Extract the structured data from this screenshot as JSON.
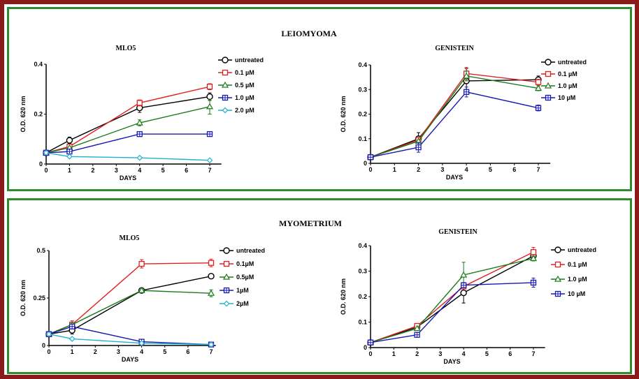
{
  "colors": {
    "outer_border": "#8b1a1a",
    "panel_border": "#2e8b2e",
    "series": {
      "untreated": "#000000",
      "red": "#e02020",
      "green": "#1a7a1a",
      "blue": "#1a1ab0",
      "cyan": "#20b0d0"
    }
  },
  "panels": [
    {
      "title": "LEIOMYOMA"
    },
    {
      "title": "MYOMETRIUM"
    }
  ],
  "chart_data": [
    {
      "type": "line",
      "panel": "LEIOMYOMA",
      "title": "MLO5",
      "xlabel": "DAYS",
      "ylabel": "O.D. 620 nm",
      "xlim": [
        0,
        7.5
      ],
      "ylim": [
        0,
        0.4
      ],
      "xticks": [
        0,
        1,
        2,
        3,
        4,
        5,
        6,
        7
      ],
      "yticks": [
        0,
        0.2,
        0.4
      ],
      "ytick_labels": [
        "0",
        "0.2",
        "0.4"
      ],
      "x": [
        0,
        1,
        4,
        7
      ],
      "series": [
        {
          "name": "untreated",
          "color": "#000000",
          "marker": "circle",
          "values": [
            0.045,
            0.095,
            0.225,
            0.27
          ],
          "errors": [
            0,
            0.013,
            0.018,
            0.015
          ]
        },
        {
          "name": "0.1 µM",
          "color": "#e02020",
          "marker": "square",
          "values": [
            0.045,
            0.07,
            0.245,
            0.31
          ],
          "errors": [
            0,
            0,
            0.012,
            0.012
          ]
        },
        {
          "name": "0.5 µM",
          "color": "#1a7a1a",
          "marker": "triangle",
          "values": [
            0.045,
            0.065,
            0.165,
            0.23
          ],
          "errors": [
            0,
            0,
            0.012,
            0.03
          ]
        },
        {
          "name": "1.0 µM",
          "color": "#1a1ab0",
          "marker": "squarecross",
          "values": [
            0.045,
            0.05,
            0.12,
            0.12
          ],
          "errors": [
            0,
            0,
            0.01,
            0.008
          ]
        },
        {
          "name": "2.0 µM",
          "color": "#20b0d0",
          "marker": "diamond",
          "values": [
            0.045,
            0.03,
            0.025,
            0.015
          ],
          "errors": [
            0,
            0,
            0,
            0
          ]
        }
      ]
    },
    {
      "type": "line",
      "panel": "LEIOMYOMA",
      "title": "GENISTEIN",
      "xlabel": "DAYS",
      "ylabel": "O.D. 620 nm",
      "xlim": [
        0,
        7.5
      ],
      "ylim": [
        0,
        0.4
      ],
      "xticks": [
        0,
        1,
        2,
        3,
        4,
        5,
        6,
        7
      ],
      "yticks": [
        0,
        0.1,
        0.2,
        0.3,
        0.4
      ],
      "ytick_labels": [
        "0",
        "0.1",
        "0.2",
        "0.3",
        "0.4"
      ],
      "x": [
        0,
        2,
        4,
        7
      ],
      "series": [
        {
          "name": "untreated",
          "color": "#000000",
          "marker": "circle",
          "values": [
            0.025,
            0.1,
            0.335,
            0.34
          ],
          "errors": [
            0,
            0.025,
            0.05,
            0.015
          ]
        },
        {
          "name": "0.1 µM",
          "color": "#e02020",
          "marker": "square",
          "values": [
            0.025,
            0.095,
            0.365,
            0.33
          ],
          "errors": [
            0,
            0,
            0.025,
            0.012
          ]
        },
        {
          "name": "1.0 µM",
          "color": "#1a7a1a",
          "marker": "triangle",
          "values": [
            0.025,
            0.09,
            0.355,
            0.305
          ],
          "errors": [
            0,
            0,
            0.02,
            0.01
          ]
        },
        {
          "name": "10 µM",
          "color": "#1a1ab0",
          "marker": "squarecross",
          "values": [
            0.025,
            0.065,
            0.29,
            0.225
          ],
          "errors": [
            0,
            0.02,
            0.02,
            0.012
          ]
        }
      ]
    },
    {
      "type": "line",
      "panel": "MYOMETRIUM",
      "title": "MLO5",
      "xlabel": "DAYS",
      "ylabel": "O.D. 620 nm",
      "xlim": [
        0,
        7.2
      ],
      "ylim": [
        0,
        0.5
      ],
      "xticks": [
        0,
        1,
        2,
        3,
        4,
        5,
        6,
        7
      ],
      "yticks": [
        0,
        0.25,
        0.5
      ],
      "ytick_labels": [
        "0",
        "0.25",
        "0.5"
      ],
      "x": [
        0,
        1,
        4,
        7
      ],
      "series": [
        {
          "name": "untreated",
          "color": "#000000",
          "marker": "circle",
          "values": [
            0.06,
            0.08,
            0.29,
            0.365
          ],
          "errors": [
            0,
            0.02,
            0.012,
            0
          ]
        },
        {
          "name": "0.1µM",
          "color": "#e02020",
          "marker": "square",
          "values": [
            0.06,
            0.11,
            0.43,
            0.435
          ],
          "errors": [
            0,
            0.02,
            0.022,
            0.02
          ]
        },
        {
          "name": "0.5µM",
          "color": "#1a7a1a",
          "marker": "triangle",
          "values": [
            0.06,
            0.11,
            0.29,
            0.275
          ],
          "errors": [
            0,
            0,
            0.012,
            0.018
          ]
        },
        {
          "name": "1µM",
          "color": "#1a1ab0",
          "marker": "squarecross",
          "values": [
            0.06,
            0.1,
            0.02,
            0.005
          ],
          "errors": [
            0,
            0,
            0,
            0
          ]
        },
        {
          "name": "2µM",
          "color": "#20b0d0",
          "marker": "diamond",
          "values": [
            0.06,
            0.035,
            0.012,
            0.005
          ],
          "errors": [
            0,
            0,
            0,
            0
          ]
        }
      ]
    },
    {
      "type": "line",
      "panel": "MYOMETRIUM",
      "title": "GENISTEIN",
      "xlabel": "DAYS",
      "ylabel": "O.D. 620 nm",
      "xlim": [
        0,
        7.5
      ],
      "ylim": [
        0,
        0.4
      ],
      "xticks": [
        0,
        1,
        2,
        3,
        4,
        5,
        6,
        7
      ],
      "yticks": [
        0,
        0.1,
        0.2,
        0.3,
        0.4
      ],
      "ytick_labels": [
        "0",
        "0.1",
        "0.2",
        "0.3",
        "0.4"
      ],
      "x": [
        0,
        2,
        4,
        7
      ],
      "series": [
        {
          "name": "untreated",
          "color": "#000000",
          "marker": "circle",
          "values": [
            0.02,
            0.08,
            0.215,
            0.36
          ],
          "errors": [
            0,
            0,
            0.04,
            0.01
          ]
        },
        {
          "name": "0.1 µM",
          "color": "#e02020",
          "marker": "square",
          "values": [
            0.02,
            0.085,
            0.24,
            0.375
          ],
          "errors": [
            0,
            0,
            0,
            0.018
          ]
        },
        {
          "name": "1.0 µM",
          "color": "#1a7a1a",
          "marker": "triangle",
          "values": [
            0.02,
            0.075,
            0.285,
            0.35
          ],
          "errors": [
            0,
            0,
            0.05,
            0.01
          ]
        },
        {
          "name": "10 µM",
          "color": "#1a1ab0",
          "marker": "squarecross",
          "values": [
            0.02,
            0.05,
            0.245,
            0.255
          ],
          "errors": [
            0,
            0,
            0,
            0.018
          ]
        }
      ]
    }
  ]
}
